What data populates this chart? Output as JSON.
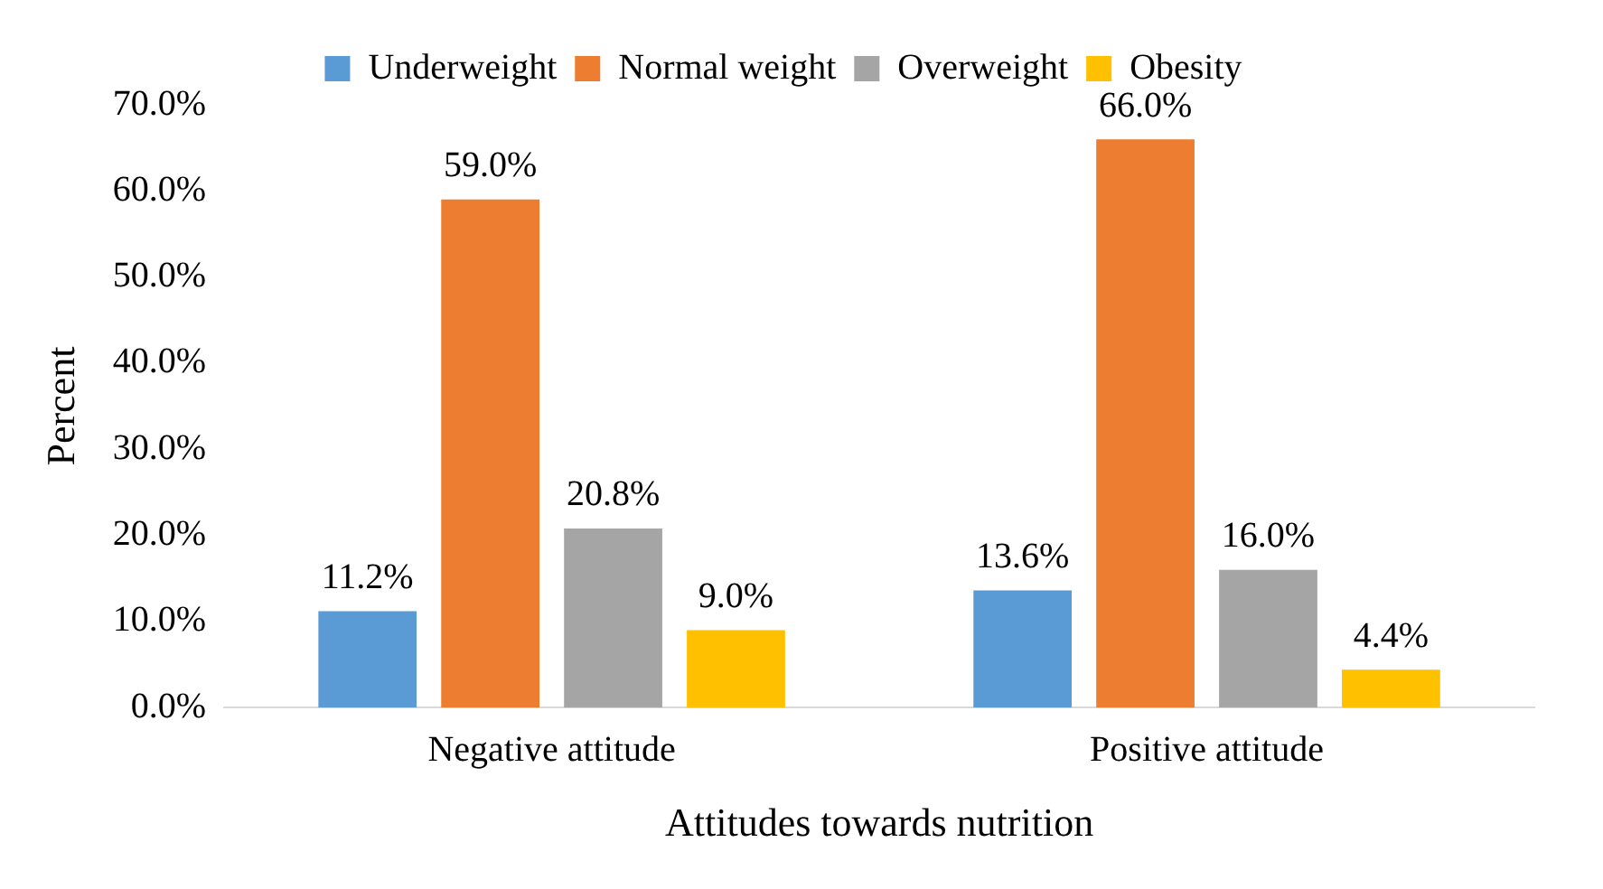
{
  "chart_data": {
    "type": "bar",
    "xlabel": "Attitudes towards nutrition",
    "ylabel": "Percent",
    "categories": [
      "Negative attitude",
      "Positive attitude"
    ],
    "series": [
      {
        "name": "Underweight",
        "color": "#5b9bd5",
        "values": [
          11.2,
          13.6
        ],
        "value_labels": [
          "11.2%",
          "13.6%"
        ]
      },
      {
        "name": "Normal weight",
        "color": "#ed7d31",
        "values": [
          59.0,
          66.0
        ],
        "value_labels": [
          "59.0%",
          "66.0%"
        ]
      },
      {
        "name": "Overweight",
        "color": "#a5a5a5",
        "values": [
          20.8,
          16.0
        ],
        "value_labels": [
          "20.8%",
          "16.0%"
        ]
      },
      {
        "name": "Obesity",
        "color": "#ffc000",
        "values": [
          9.0,
          4.4
        ],
        "value_labels": [
          "9.0%",
          "4.4%"
        ]
      }
    ],
    "ylim": [
      0,
      70
    ],
    "yticks": [
      {
        "value": 0,
        "label": "0.0%"
      },
      {
        "value": 10,
        "label": "10.0%"
      },
      {
        "value": 20,
        "label": "20.0%"
      },
      {
        "value": 30,
        "label": "30.0%"
      },
      {
        "value": 40,
        "label": "40.0%"
      },
      {
        "value": 50,
        "label": "50.0%"
      },
      {
        "value": 60,
        "label": "60.0%"
      },
      {
        "value": 70,
        "label": "70.0%"
      }
    ],
    "grid": false,
    "legend": "top"
  }
}
